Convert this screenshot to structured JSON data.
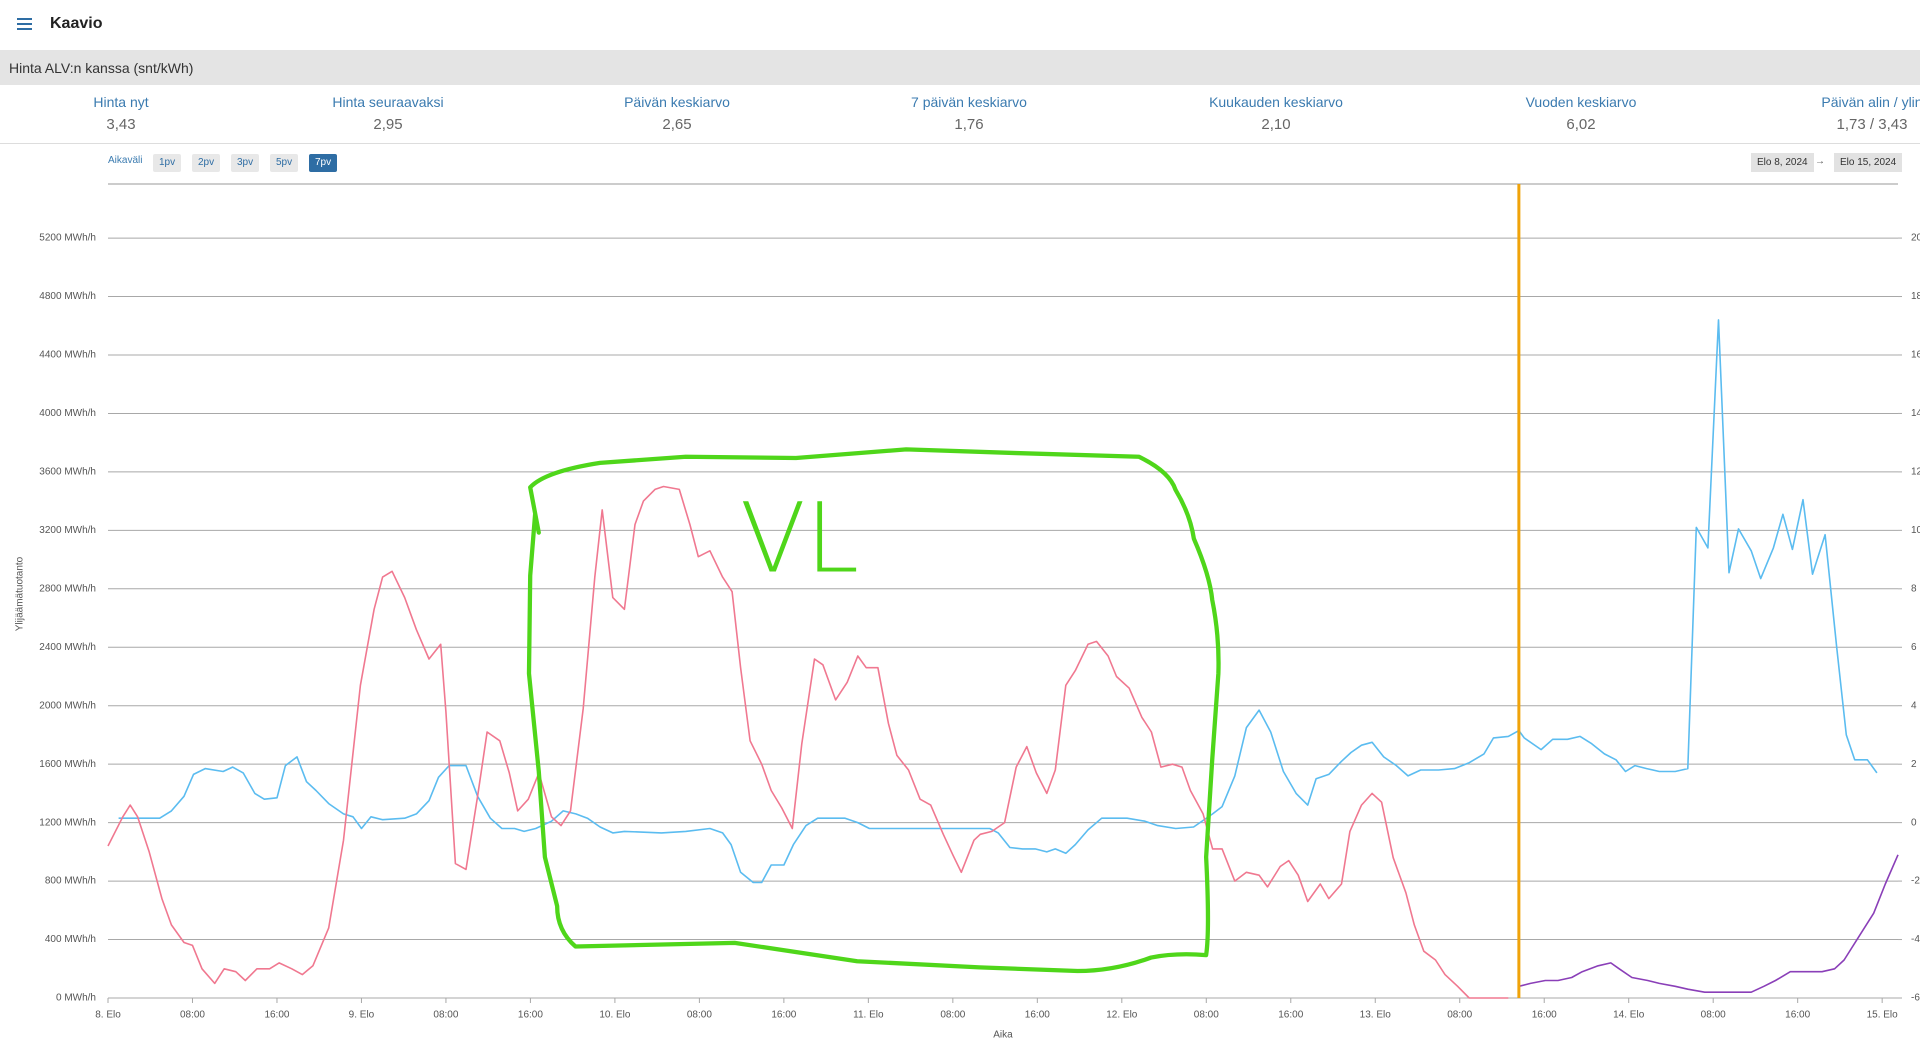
{
  "header": {
    "title": "Kaavio"
  },
  "price_bar": {
    "title": "Hinta ALV:n kanssa (snt/kWh)"
  },
  "stats": [
    {
      "label": "Hinta nyt",
      "value": "3,43"
    },
    {
      "label": "Hinta seuraavaksi",
      "value": "2,95"
    },
    {
      "label": "Päivän keskiarvo",
      "value": "2,65"
    },
    {
      "label": "7 päivän keskiarvo",
      "value": "1,76"
    },
    {
      "label": "Kuukauden keskiarvo",
      "value": "2,10"
    },
    {
      "label": "Vuoden keskiarvo",
      "value": "6,02"
    },
    {
      "label": "Päivän alin / ylin",
      "value": "1,73 / 3,43"
    }
  ],
  "range": {
    "label": "Aikaväli",
    "options": [
      "1pv",
      "2pv",
      "3pv",
      "5pv",
      "7pv"
    ],
    "active": 4
  },
  "dates": {
    "from": "Elo 8, 2024",
    "arrow": "→",
    "to": "Elo 15, 2024"
  },
  "annotation": {
    "text": "VL"
  },
  "chart_data": {
    "type": "line",
    "y_label": "Ylijäämätuotanto",
    "x_label": "Aika",
    "xlim": [
      0,
      169.5
    ],
    "xticks": [
      {
        "value": 0,
        "label": "8. Elo"
      },
      {
        "value": 8,
        "label": "08:00"
      },
      {
        "value": 16,
        "label": "16:00"
      },
      {
        "value": 24,
        "label": "9. Elo"
      },
      {
        "value": 32,
        "label": "08:00"
      },
      {
        "value": 40,
        "label": "16:00"
      },
      {
        "value": 48,
        "label": "10. Elo"
      },
      {
        "value": 56,
        "label": "08:00"
      },
      {
        "value": 64,
        "label": "16:00"
      },
      {
        "value": 72,
        "label": "11. Elo"
      },
      {
        "value": 80,
        "label": "08:00"
      },
      {
        "value": 88,
        "label": "16:00"
      },
      {
        "value": 96,
        "label": "12. Elo"
      },
      {
        "value": 104,
        "label": "08:00"
      },
      {
        "value": 112,
        "label": "16:00"
      },
      {
        "value": 120,
        "label": "13. Elo"
      },
      {
        "value": 128,
        "label": "08:00"
      },
      {
        "value": 136,
        "label": "16:00"
      },
      {
        "value": 144,
        "label": "14. Elo"
      },
      {
        "value": 152,
        "label": "08:00"
      },
      {
        "value": 160,
        "label": "16:00"
      },
      {
        "value": 168,
        "label": "15. Elo"
      }
    ],
    "ylim": [
      0,
      5570
    ],
    "yticks": [
      {
        "value": 0,
        "label": "0 MWh/h"
      },
      {
        "value": 400,
        "label": "400 MWh/h"
      },
      {
        "value": 800,
        "label": "800 MWh/h"
      },
      {
        "value": 1200,
        "label": "1200 MWh/h"
      },
      {
        "value": 1600,
        "label": "1600 MWh/h"
      },
      {
        "value": 2000,
        "label": "2000 MWh/h"
      },
      {
        "value": 2400,
        "label": "2400 MWh/h"
      },
      {
        "value": 2800,
        "label": "2800 MWh/h"
      },
      {
        "value": 3200,
        "label": "3200 MWh/h"
      },
      {
        "value": 3600,
        "label": "3600 MWh/h"
      },
      {
        "value": 4000,
        "label": "4000 MWh/h"
      },
      {
        "value": 4400,
        "label": "4400 MWh/h"
      },
      {
        "value": 4800,
        "label": "4800 MWh/h"
      },
      {
        "value": 5200,
        "label": "5200 MWh/h"
      }
    ],
    "y2lim": [
      -6,
      21.85
    ],
    "y2ticks": [
      -6,
      -4,
      -2,
      0,
      2,
      4,
      6,
      8,
      10,
      12,
      14,
      16,
      18,
      20
    ],
    "grid": true,
    "now_marker": {
      "x": 133.6,
      "color": "#f0a30a"
    },
    "series": [
      {
        "color": "#5bbcf0",
        "axis": "y",
        "x": [
          1.0,
          4.9,
          6.0,
          7.2,
          8.1,
          9.2,
          10.9,
          11.8,
          12.8,
          13.9,
          14.8,
          16.0,
          16.8,
          17.9,
          18.8,
          19.7,
          20.9,
          22.3,
          23.2,
          24.0,
          24.9,
          26.0,
          28.1,
          29.2,
          30.4,
          31.3,
          32.3,
          33.9,
          35.0,
          36.2,
          37.3,
          38.5,
          39.4,
          40.5,
          42.0,
          43.1,
          44.3,
          45.4,
          46.6,
          47.8,
          48.9,
          52.4,
          54.7,
          57.0,
          58.2,
          59.0,
          59.9,
          61.1,
          61.9,
          62.8,
          64.0,
          64.9,
          66.1,
          67.2,
          69.8,
          71.0,
          72.1,
          74.4,
          77.9,
          81.4,
          82.6,
          83.5,
          84.3,
          85.4,
          86.6,
          87.8,
          88.9,
          89.7,
          90.7,
          91.6,
          92.8,
          94.1,
          96.5,
          98.2,
          99.4,
          101.1,
          102.8,
          104.6,
          105.5,
          106.7,
          107.8,
          109.0,
          110.1,
          111.3,
          112.5,
          113.6,
          114.4,
          115.6,
          116.8,
          117.7,
          118.7,
          119.7,
          120.8,
          122.0,
          123.1,
          124.3,
          126.0,
          127.5,
          128.9,
          130.3,
          131.2,
          132.6,
          133.6,
          134.1,
          135.7,
          136.8,
          138.2,
          139.4,
          140.5,
          141.7,
          142.8,
          143.7,
          144.6,
          145.7,
          146.9,
          148.4,
          149.6,
          150.4,
          151.5,
          152.5,
          153.5,
          154.4,
          155.6,
          156.5,
          157.7,
          158.6,
          159.5,
          160.5,
          161.4,
          162.6,
          163.7,
          164.6,
          165.4,
          166.6,
          167.5
        ],
        "values": [
          1230,
          1230,
          1280,
          1380,
          1530,
          1570,
          1550,
          1580,
          1540,
          1400,
          1360,
          1370,
          1590,
          1650,
          1480,
          1420,
          1330,
          1260,
          1240,
          1160,
          1240,
          1220,
          1230,
          1260,
          1350,
          1510,
          1590,
          1590,
          1380,
          1230,
          1160,
          1160,
          1140,
          1160,
          1210,
          1280,
          1260,
          1230,
          1170,
          1130,
          1140,
          1130,
          1140,
          1160,
          1130,
          1050,
          860,
          790,
          790,
          910,
          910,
          1050,
          1180,
          1230,
          1230,
          1200,
          1160,
          1160,
          1160,
          1160,
          1160,
          1160,
          1130,
          1030,
          1020,
          1020,
          1000,
          1020,
          990,
          1050,
          1150,
          1230,
          1230,
          1210,
          1180,
          1160,
          1170,
          1260,
          1310,
          1520,
          1850,
          1970,
          1820,
          1550,
          1400,
          1320,
          1500,
          1530,
          1620,
          1680,
          1730,
          1750,
          1650,
          1590,
          1520,
          1560,
          1560,
          1570,
          1610,
          1670,
          1780,
          1790,
          1830,
          1780,
          1700,
          1770,
          1770,
          1790,
          1740,
          1670,
          1630,
          1550,
          1590,
          1570,
          1550,
          1550,
          1570,
          3220,
          3080,
          4640,
          2910,
          3210,
          3060,
          2870,
          3080,
          3310,
          3070,
          3410,
          2900,
          3170,
          2400,
          1800,
          1630,
          1630,
          1540
        ]
      },
      {
        "color": "#f07890",
        "axis": "y2",
        "x": [
          0.0,
          1.4,
          2.1,
          2.8,
          3.9,
          5.1,
          6.0,
          7.2,
          8.0,
          8.9,
          10.1,
          11.0,
          12.1,
          13.0,
          14.1,
          15.3,
          16.2,
          17.4,
          18.4,
          19.4,
          20.9,
          22.3,
          23.9,
          25.2,
          26.0,
          26.9,
          28.1,
          29.2,
          30.4,
          31.5,
          32.0,
          32.9,
          33.9,
          35.0,
          35.9,
          37.1,
          38.0,
          38.8,
          39.8,
          40.8,
          42.0,
          42.9,
          43.8,
          45.0,
          46.1,
          46.8,
          47.8,
          48.9,
          49.9,
          50.7,
          51.8,
          52.6,
          54.1,
          55.1,
          55.9,
          57.0,
          58.2,
          59.1,
          59.9,
          60.8,
          61.9,
          62.8,
          63.8,
          64.8,
          65.7,
          66.9,
          67.7,
          68.9,
          70.0,
          71.0,
          71.8,
          72.9,
          73.9,
          74.7,
          75.8,
          76.9,
          77.9,
          79.1,
          80.0,
          80.8,
          82.0,
          82.6,
          83.7,
          84.9,
          86.0,
          87.0,
          87.9,
          88.9,
          89.7,
          90.7,
          91.6,
          92.8,
          93.6,
          94.7,
          95.5,
          96.7,
          97.9,
          98.8,
          99.7,
          100.8,
          101.7,
          102.5,
          103.7,
          104.6,
          105.5,
          106.7,
          107.8,
          109.0,
          109.8,
          111.0,
          111.8,
          112.7,
          113.6,
          114.8,
          115.6,
          116.8,
          117.6,
          118.7,
          119.7,
          120.6,
          121.7,
          122.9,
          123.7,
          124.6,
          125.7,
          126.6,
          127.8,
          128.9,
          130.1,
          131.8,
          132.6
        ],
        "values": [
          -0.8,
          0.2,
          0.6,
          0.2,
          -1.0,
          -2.6,
          -3.5,
          -4.1,
          -4.2,
          -5.0,
          -5.5,
          -5.0,
          -5.1,
          -5.4,
          -5.0,
          -5.0,
          -4.8,
          -5.0,
          -5.2,
          -4.9,
          -3.6,
          -0.6,
          4.7,
          7.3,
          8.4,
          8.6,
          7.7,
          6.6,
          5.6,
          6.1,
          3.8,
          -1.4,
          -1.6,
          0.9,
          3.1,
          2.8,
          1.7,
          0.4,
          0.8,
          1.7,
          0.2,
          -0.1,
          0.4,
          3.9,
          8.4,
          10.7,
          7.7,
          7.3,
          10.2,
          11.0,
          11.4,
          11.5,
          11.4,
          10.2,
          9.1,
          9.3,
          8.4,
          7.9,
          5.3,
          2.8,
          2.0,
          1.1,
          0.5,
          -0.2,
          2.7,
          5.6,
          5.4,
          4.2,
          4.8,
          5.7,
          5.3,
          5.3,
          3.4,
          2.3,
          1.8,
          0.8,
          0.6,
          -0.4,
          -1.1,
          -1.7,
          -0.6,
          -0.4,
          -0.3,
          0.0,
          1.9,
          2.6,
          1.7,
          1.0,
          1.8,
          4.7,
          5.2,
          6.1,
          6.2,
          5.7,
          5.0,
          4.6,
          3.6,
          3.1,
          1.9,
          2.0,
          1.9,
          1.1,
          0.3,
          -0.9,
          -0.9,
          -2.0,
          -1.7,
          -1.8,
          -2.2,
          -1.5,
          -1.3,
          -1.8,
          -2.7,
          -2.1,
          -2.6,
          -2.1,
          -0.3,
          0.6,
          1.0,
          0.7,
          -1.2,
          -2.4,
          -3.5,
          -4.4,
          -4.7,
          -5.2,
          -5.6,
          -6.0,
          -6.0,
          -6.0,
          -6.0
        ]
      },
      {
        "color": "#8a3fb8",
        "axis": "y2",
        "x": [
          133.6,
          134.7,
          136.1,
          137.3,
          138.6,
          139.6,
          141.1,
          142.3,
          143.1,
          144.3,
          145.8,
          146.9,
          148.4,
          149.6,
          151.2,
          152.7,
          154.2,
          155.6,
          156.8,
          157.9,
          159.3,
          160.8,
          162.3,
          163.5,
          164.4,
          165.8,
          167.2,
          168.3,
          169.5
        ],
        "values": [
          -5.6,
          -5.5,
          -5.4,
          -5.4,
          -5.3,
          -5.1,
          -4.9,
          -4.8,
          -5.0,
          -5.3,
          -5.4,
          -5.5,
          -5.6,
          -5.7,
          -5.8,
          -5.8,
          -5.8,
          -5.8,
          -5.6,
          -5.4,
          -5.1,
          -5.1,
          -5.1,
          -5.0,
          -4.7,
          -3.9,
          -3.1,
          -2.1,
          -1.1
        ]
      }
    ]
  }
}
